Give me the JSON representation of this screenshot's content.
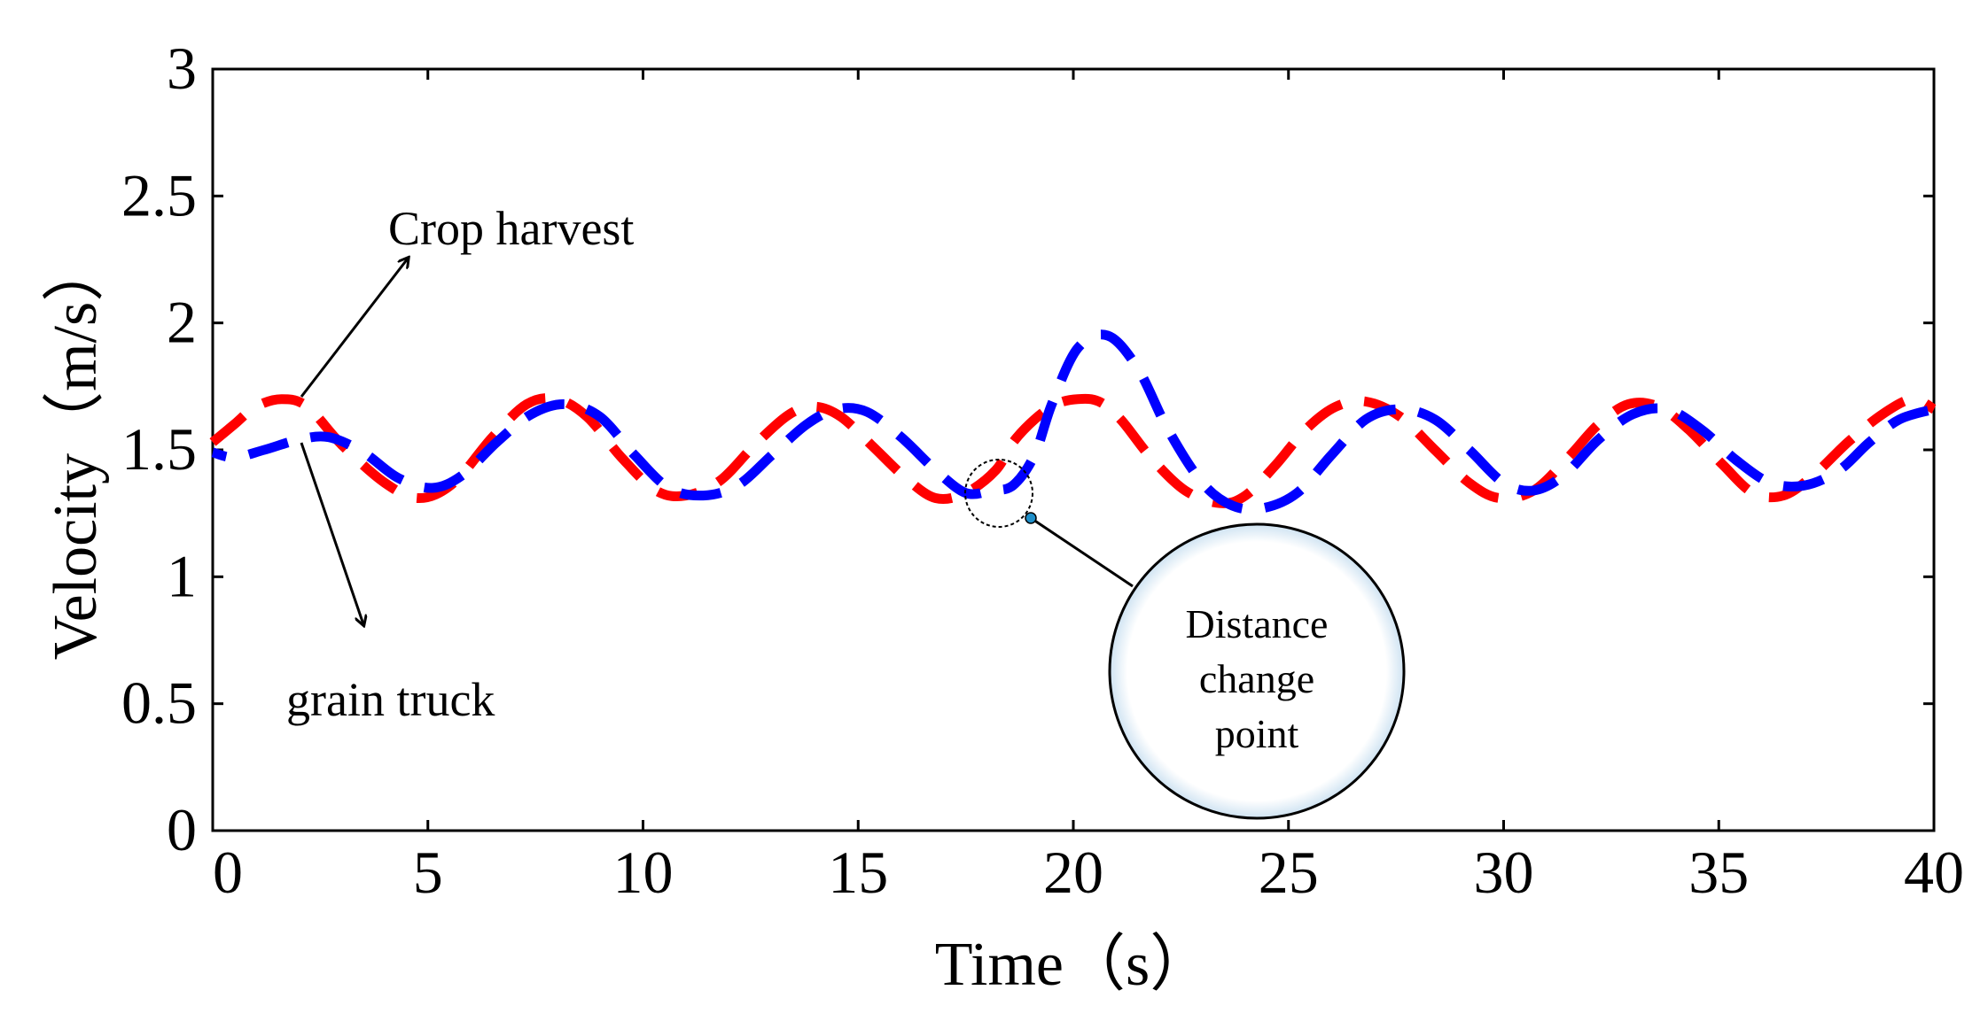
{
  "chart_data": {
    "type": "line",
    "title": "",
    "xlabel": "Time（s）",
    "ylabel": "Velocity（m/s）",
    "xlim": [
      0,
      40
    ],
    "ylim": [
      0,
      3
    ],
    "xticks": [
      0,
      5,
      10,
      15,
      20,
      25,
      30,
      35,
      40
    ],
    "xtick_labels": [
      "0",
      "5",
      "10",
      "15",
      "20",
      "25",
      "30",
      "35",
      "40"
    ],
    "yticks": [
      0,
      0.5,
      1,
      1.5,
      2,
      2.5,
      3
    ],
    "ytick_labels": [
      "0",
      "0.5",
      "1",
      "1.5",
      "2",
      "2.5",
      "3"
    ],
    "grid": false,
    "series": [
      {
        "name": "Crop harvest",
        "color": "#ff0000",
        "style": "dashed",
        "x": [
          0,
          0.5,
          1,
          1.6,
          2.2,
          3,
          4,
          4.8,
          5.6,
          6.5,
          7.3,
          8,
          8.7,
          9.5,
          10.3,
          11,
          11.8,
          12.6,
          13.4,
          14,
          14.6,
          15.3,
          16.1,
          16.8,
          17.5,
          18.2,
          18.6,
          19.1,
          19.6,
          20.1,
          20.6,
          21.1,
          21.8,
          22.6,
          23.4,
          24,
          24.7,
          25.4,
          26.1,
          26.8,
          27.6,
          28.4,
          29.2,
          29.9,
          30.7,
          31.5,
          32.2,
          32.9,
          33.6,
          34.3,
          35.1,
          35.8,
          36.5,
          37.2,
          38,
          38.8,
          39.5,
          40
        ],
        "values": [
          1.53,
          1.6,
          1.67,
          1.7,
          1.67,
          1.52,
          1.37,
          1.31,
          1.37,
          1.55,
          1.68,
          1.7,
          1.63,
          1.47,
          1.34,
          1.32,
          1.38,
          1.52,
          1.64,
          1.67,
          1.63,
          1.52,
          1.39,
          1.31,
          1.33,
          1.42,
          1.53,
          1.62,
          1.68,
          1.7,
          1.69,
          1.62,
          1.47,
          1.34,
          1.29,
          1.32,
          1.44,
          1.58,
          1.67,
          1.69,
          1.63,
          1.5,
          1.37,
          1.31,
          1.34,
          1.47,
          1.6,
          1.68,
          1.67,
          1.58,
          1.44,
          1.33,
          1.32,
          1.4,
          1.53,
          1.64,
          1.7,
          1.66
        ]
      },
      {
        "name": "grain truck",
        "color": "#0000ff",
        "style": "dashed",
        "x": [
          0,
          0.5,
          1.2,
          2,
          2.7,
          3.5,
          4.3,
          5.1,
          5.8,
          6.6,
          7.4,
          8.2,
          9,
          9.8,
          10.6,
          11.4,
          12.2,
          13,
          13.8,
          14.5,
          15.2,
          16,
          16.8,
          17.5,
          18.1,
          18.6,
          19.1,
          19.5,
          20.1,
          20.8,
          21.5,
          22.2,
          23,
          23.7,
          24.4,
          25.2,
          26,
          26.8,
          27.6,
          28.4,
          29.2,
          30,
          30.7,
          31.4,
          32.2,
          33,
          33.8,
          34.6,
          35.4,
          36.2,
          37,
          37.8,
          38.5,
          39.2,
          40
        ],
        "values": [
          1.49,
          1.47,
          1.5,
          1.54,
          1.55,
          1.49,
          1.39,
          1.35,
          1.4,
          1.53,
          1.64,
          1.68,
          1.63,
          1.48,
          1.35,
          1.32,
          1.36,
          1.48,
          1.6,
          1.66,
          1.65,
          1.55,
          1.42,
          1.33,
          1.34,
          1.36,
          1.48,
          1.68,
          1.9,
          1.95,
          1.82,
          1.58,
          1.37,
          1.28,
          1.27,
          1.33,
          1.48,
          1.62,
          1.66,
          1.62,
          1.5,
          1.37,
          1.34,
          1.4,
          1.54,
          1.64,
          1.66,
          1.58,
          1.46,
          1.37,
          1.36,
          1.42,
          1.53,
          1.62,
          1.66
        ]
      }
    ],
    "annotations": {
      "crop_harvest_label": "Crop harvest",
      "grain_truck_label": "grain truck",
      "distance_change_point": [
        "Distance",
        "change",
        "point"
      ]
    }
  }
}
